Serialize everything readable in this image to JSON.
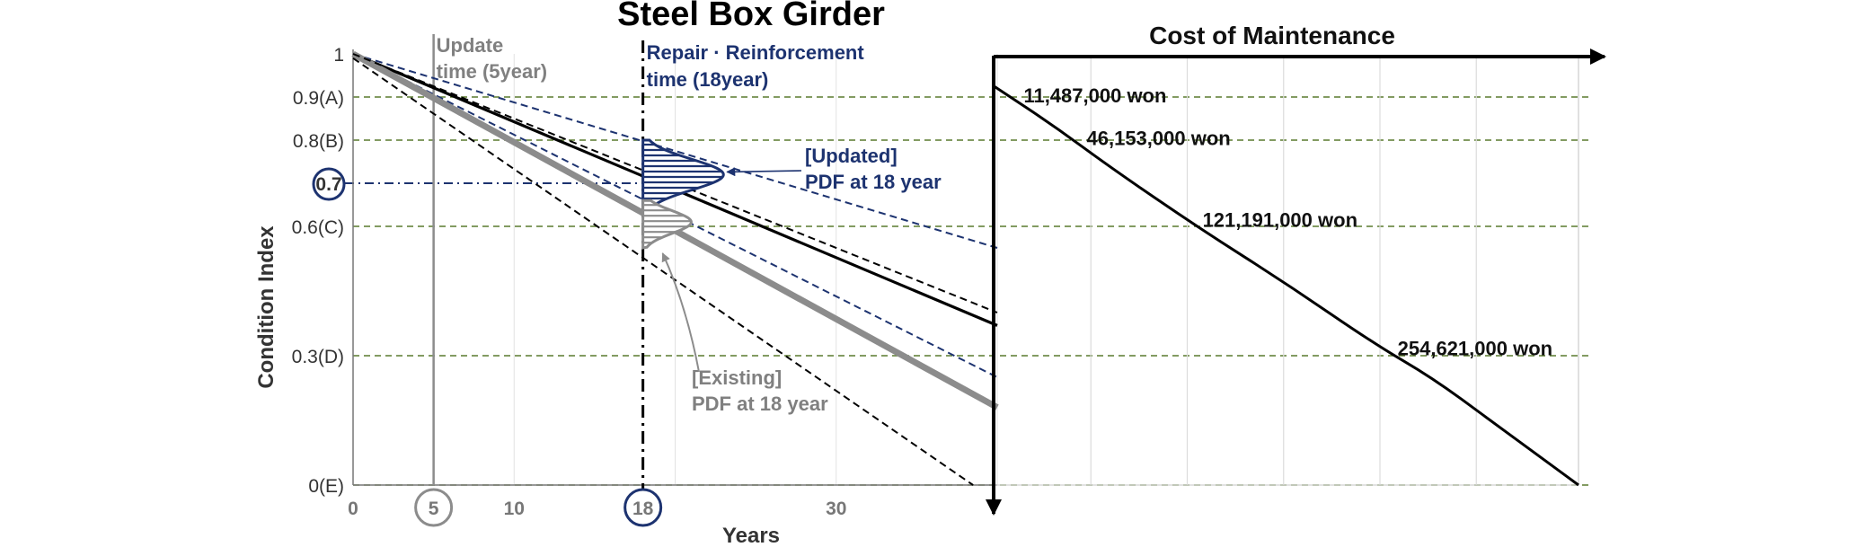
{
  "title": "Steel Box Girder",
  "colors": {
    "navy": "#1d3370",
    "grey": "#8c8c8c",
    "grid_green": "#5a7a2e",
    "black": "#000000"
  },
  "chart_data": [
    {
      "type": "line",
      "title": "Steel Box Girder",
      "xlabel": "Years",
      "ylabel": "Condition Index",
      "xlim": [
        0,
        40
      ],
      "ylim": [
        0,
        1
      ],
      "x_ticks": [
        {
          "value": 0,
          "label": "0",
          "circled": false
        },
        {
          "value": 5,
          "label": "5",
          "circled": true,
          "color": "grey"
        },
        {
          "value": 10,
          "label": "10",
          "circled": false
        },
        {
          "value": 18,
          "label": "18",
          "circled": true,
          "color": "navy"
        },
        {
          "value": 30,
          "label": "30",
          "circled": false
        }
      ],
      "y_ticks": [
        {
          "value": 1.0,
          "label": "1",
          "dashed_line": false
        },
        {
          "value": 0.9,
          "label": "0.9(A)",
          "dashed_line": true
        },
        {
          "value": 0.8,
          "label": "0.8(B)",
          "dashed_line": true
        },
        {
          "value": 0.7,
          "label": "0.7",
          "circled": true,
          "dash_dot_to_x": 18
        },
        {
          "value": 0.6,
          "label": "0.6(C)",
          "dashed_line": true
        },
        {
          "value": 0.3,
          "label": "0.3(D)",
          "dashed_line": true
        },
        {
          "value": 0.0,
          "label": "0(E)",
          "dashed_line": true
        }
      ],
      "grid": true,
      "series": [
        {
          "role": "updated_mean",
          "style": "solid-black",
          "x": [
            0,
            40
          ],
          "y": [
            1.0,
            0.37
          ]
        },
        {
          "role": "updated_band_upper",
          "style": "dashed-navy",
          "x": [
            0,
            40
          ],
          "y": [
            1.0,
            0.55
          ]
        },
        {
          "role": "updated_band_lower",
          "style": "dashed-navy",
          "x": [
            0,
            40
          ],
          "y": [
            1.0,
            0.25
          ]
        },
        {
          "role": "existing_mean",
          "style": "thick-grey",
          "x": [
            0,
            40
          ],
          "y": [
            1.0,
            0.18
          ]
        },
        {
          "role": "existing_band_upper",
          "style": "dashed-black",
          "x": [
            0,
            40
          ],
          "y": [
            1.0,
            0.4
          ]
        },
        {
          "role": "existing_band_lower",
          "style": "dashed-black",
          "x": [
            0,
            38.5
          ],
          "y": [
            0.99,
            0.0
          ]
        }
      ],
      "pdfs": [
        {
          "role": "updated",
          "x": 18,
          "mean": 0.72,
          "range": [
            0.65,
            0.8
          ],
          "width_years": 5
        },
        {
          "role": "existing",
          "x": 18,
          "mean": 0.61,
          "range": [
            0.55,
            0.66
          ],
          "width_years": 3
        }
      ],
      "vertical_markers": [
        {
          "x": 5,
          "style": "solid-grey",
          "label_lines": [
            "Update",
            "time (5year)"
          ]
        },
        {
          "x": 18,
          "style": "dash-dot-black",
          "label_lines": [
            "Repair · Reinforcement",
            "time (18year)"
          ]
        }
      ],
      "annotations": [
        {
          "lines": [
            "[Updated]",
            "PDF at 18 year"
          ],
          "color": "navy",
          "arrow_to": [
            23,
            0.72
          ]
        },
        {
          "lines": [
            "[Existing]",
            "PDF at 18 year"
          ],
          "color": "grey",
          "arrow_to": [
            19,
            0.55
          ]
        }
      ]
    },
    {
      "type": "line",
      "title": "Cost of Maintenance",
      "xlabel": "",
      "ylabel": "",
      "grid": true,
      "ylim": [
        0,
        1
      ],
      "series": [
        {
          "role": "cost_curve",
          "x": [
            0.0,
            0.1,
            0.2,
            0.35,
            0.5,
            0.65,
            0.75,
            0.85,
            0.95,
            1.0
          ],
          "y": [
            0.93,
            0.84,
            0.74,
            0.6,
            0.47,
            0.33,
            0.25,
            0.15,
            0.05,
            0.0
          ]
        }
      ],
      "labels": [
        {
          "text": "11,487,000 won",
          "y": 0.91
        },
        {
          "text": "46,153,000 won",
          "y": 0.81
        },
        {
          "text": "121,191,000 won",
          "y": 0.62
        },
        {
          "text": "254,621,000 won",
          "y": 0.32
        }
      ]
    }
  ]
}
